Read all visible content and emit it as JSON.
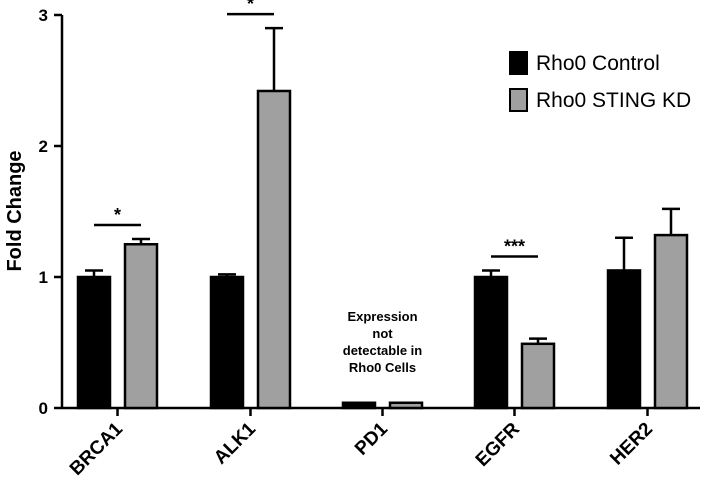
{
  "chart_data": {
    "type": "bar",
    "title": "",
    "xlabel": "",
    "ylabel": "Fold Change",
    "ylim": [
      0,
      3
    ],
    "yticks": [
      "0",
      "1",
      "2",
      "3"
    ],
    "categories": [
      "BRCA1",
      "ALK1",
      "PD1",
      "EGFR",
      "HER2"
    ],
    "series": [
      {
        "name": "Rho0 Control",
        "color": "#000000",
        "values": [
          1.0,
          1.0,
          0.04,
          1.0,
          1.05
        ],
        "errors": [
          0.05,
          0.02,
          0.0,
          0.05,
          0.25
        ]
      },
      {
        "name": "Rho0 STING KD",
        "color": "#a0a0a0",
        "values": [
          1.25,
          2.42,
          0.04,
          0.49,
          1.32
        ],
        "errors": [
          0.04,
          0.48,
          0.0,
          0.04,
          0.2
        ]
      }
    ],
    "significance": [
      {
        "category": "BRCA1",
        "label": "*"
      },
      {
        "category": "ALK1",
        "label": "*"
      },
      {
        "category": "EGFR",
        "label": "***"
      }
    ],
    "annotation": {
      "category": "PD1",
      "lines": [
        "Expression",
        "not",
        "detectable in",
        "Rho0  Cells"
      ]
    },
    "legend_position": "top-right",
    "grid": false
  }
}
